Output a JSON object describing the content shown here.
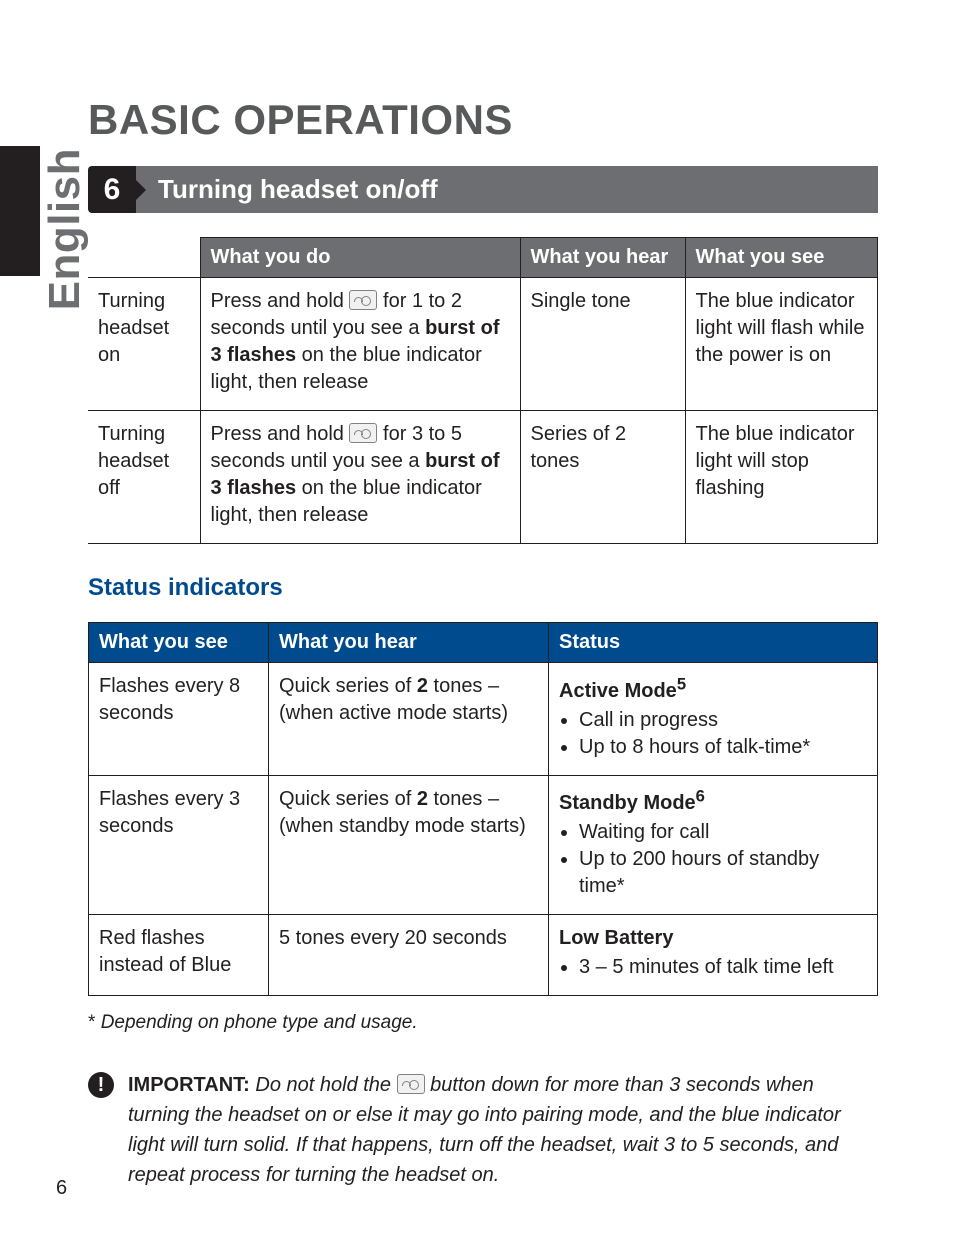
{
  "side_label": "English",
  "page_number": "6",
  "h1": "BASIC OPERATIONS",
  "section": {
    "number": "6",
    "title": "Turning headset on/off"
  },
  "table1": {
    "headers": [
      "",
      "What you do",
      "What you hear",
      "What you see"
    ],
    "rows": [
      {
        "label": "Turning headset on",
        "do_pre": "Press and hold ",
        "do_mid": " for 1 to 2 seconds until you see a ",
        "do_bold": "burst of 3 flashes",
        "do_post": " on the blue indicator light, then release",
        "hear": "Single tone",
        "see": "The blue indicator light will flash while the power is on"
      },
      {
        "label": "Turning headset off",
        "do_pre": "Press and hold ",
        "do_mid": " for 3 to 5 seconds until you see a ",
        "do_bold": "burst of 3 flashes",
        "do_post": " on the blue indicator light, then release",
        "hear": "Series of 2 tones",
        "see": "The blue indicator light will stop flashing"
      }
    ]
  },
  "subheading": "Status indicators",
  "table2": {
    "headers": [
      "What you see",
      "What you hear",
      "Status"
    ],
    "rows": [
      {
        "see": "Flashes every 8 seconds",
        "hear_pre": "Quick series of ",
        "hear_bold": "2",
        "hear_post": " tones – (when active mode starts)",
        "status_title": "Active Mode",
        "status_sup": "5",
        "bullets": [
          "Call in progress",
          "Up to 8 hours of talk-time*"
        ]
      },
      {
        "see": "Flashes every 3 seconds",
        "hear_pre": "Quick series of ",
        "hear_bold": "2",
        "hear_post": " tones – (when standby mode starts)",
        "status_title": "Standby Mode",
        "status_sup": "6",
        "bullets": [
          "Waiting for call",
          "Up to 200 hours of standby time*"
        ]
      },
      {
        "see": "Red flashes instead of Blue",
        "hear_pre": "5 tones every 20 seconds",
        "hear_bold": "",
        "hear_post": "",
        "status_title": "Low Battery",
        "status_sup": "",
        "bullets": [
          "3 – 5 minutes of talk time left"
        ]
      }
    ]
  },
  "footnote": "Depending on phone type and usage.",
  "important": {
    "label": "IMPORTANT:",
    "pre": " Do not hold the ",
    "post": " button down for more than 3 seconds when turning the headset on or else it may go into pairing mode, and the blue indicator light will turn solid. If that happens, turn off the headset, wait 3 to 5 seconds, and repeat process for turning the headset on."
  },
  "colors": {
    "dark": "#231f20",
    "gray": "#6d6e71",
    "blue": "#004b8d",
    "sidegray": "#6d6e71"
  }
}
